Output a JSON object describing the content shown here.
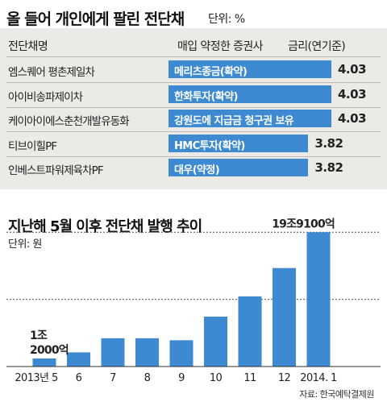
{
  "table": {
    "title": "올 들어 개인에게 팔린 전단채",
    "unit": "단위: %",
    "headers": {
      "issuer": "전단채명",
      "broker": "매입 약정한 증권사",
      "rate": "금리(연기준)"
    },
    "rows": [
      {
        "issuer": "엠스퀘어 평촌제일차",
        "broker": "메리츠종금(확약)",
        "rate": "4.03",
        "rate_value": 4.03
      },
      {
        "issuer": "아이비송파제이차",
        "broker": "한화투자(확약)",
        "rate": "4.03",
        "rate_value": 4.03
      },
      {
        "issuer": "케이아이에스춘천개발유동화",
        "broker": "강원도에 지급금 청구권 보유",
        "rate": "4.03",
        "rate_value": 4.03
      },
      {
        "issuer": "티브이힐PF",
        "broker": "HMC투자(확약)",
        "rate": "3.82",
        "rate_value": 3.82
      },
      {
        "issuer": "인베스트파워제육차PF",
        "broker": "대우(약정)",
        "rate": "3.82",
        "rate_value": 3.82
      }
    ]
  },
  "chart": {
    "title": "지난해 5월 이후 전단채 발행 추이",
    "unit": "단위: 원",
    "first_label": [
      "1조",
      "2000억"
    ],
    "last_label": "19조9100억",
    "source": "자료: 한국예탁결제원",
    "colors": {
      "bar": "#3d8ad2",
      "text": "#222222",
      "guide": "#555555"
    }
  },
  "chart_data": {
    "type": "bar",
    "categories": [
      "2013년 5",
      "6",
      "7",
      "8",
      "9",
      "10",
      "11",
      "12",
      "2014. 1"
    ],
    "values": [
      1.2,
      2.1,
      4.2,
      4.2,
      3.9,
      7.4,
      10.4,
      14.6,
      19.91
    ],
    "value_unit": "조원",
    "annotations": [
      {
        "category": "2013년 5",
        "value": 1.2,
        "text": "1조 2000억"
      },
      {
        "category": "2014. 1",
        "value": 19.91,
        "text": "19조9100억"
      }
    ],
    "ylim": [
      0,
      20.3
    ],
    "grid": false
  }
}
